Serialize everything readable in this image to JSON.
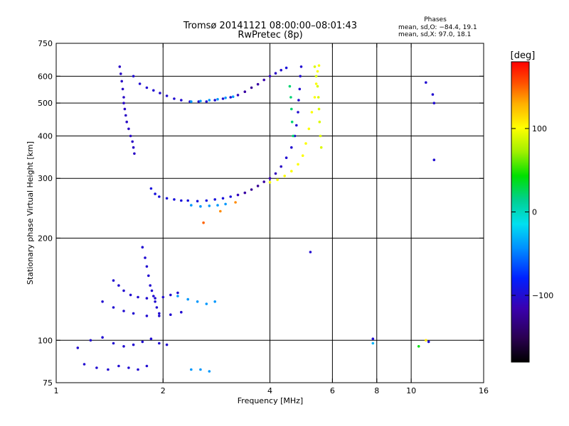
{
  "header": {
    "title_line1": "Tromsø 20141121 08:00:00–08:01:43",
    "title_line2": "RwPretec (8p)",
    "stats_title": "Phases",
    "stats_o": "mean, sd,O: −84.4, 19.1",
    "stats_x": "mean, sd,X:  97.0, 18.1"
  },
  "colorbar": {
    "label": "[deg]",
    "ticks": [
      {
        "value": 100,
        "label": "100"
      },
      {
        "value": 0,
        "label": "0"
      },
      {
        "value": -100,
        "label": "−100"
      }
    ],
    "range": [
      -180,
      180
    ]
  },
  "chart_data": {
    "type": "scatter",
    "xlabel": "Frequency [MHz]",
    "ylabel": "Stationary phase Virtual Height [km]",
    "x_scale": "log",
    "y_scale": "log",
    "xlim": [
      1,
      16
    ],
    "ylim": [
      75,
      750
    ],
    "x_ticks": [
      {
        "value": 1,
        "label": "1"
      },
      {
        "value": 2,
        "label": "2"
      },
      {
        "value": 4,
        "label": "4"
      },
      {
        "value": 6,
        "label": "6"
      },
      {
        "value": 8,
        "label": "8"
      },
      {
        "value": 10,
        "label": "10"
      },
      {
        "value": 16,
        "label": "16"
      }
    ],
    "y_ticks": [
      {
        "value": 75,
        "label": "75"
      },
      {
        "value": 100,
        "label": "100"
      },
      {
        "value": 200,
        "label": "200"
      },
      {
        "value": 300,
        "label": "300"
      },
      {
        "value": 400,
        "label": "400"
      },
      {
        "value": 500,
        "label": "500"
      },
      {
        "value": 600,
        "label": "600"
      },
      {
        "value": 750,
        "label": "750"
      }
    ],
    "grid_x": [
      2,
      4,
      6,
      8,
      10
    ],
    "grid_y": [
      100,
      200,
      300,
      400,
      500,
      600
    ],
    "series": [
      {
        "points": [
          [
            1.51,
            640,
            -105
          ],
          [
            1.52,
            610,
            -105
          ],
          [
            1.53,
            580,
            -105
          ],
          [
            1.54,
            550,
            -105
          ],
          [
            1.55,
            520,
            -105
          ],
          [
            1.55,
            500,
            -105
          ],
          [
            1.56,
            480,
            -105
          ],
          [
            1.57,
            460,
            -105
          ],
          [
            1.58,
            440,
            -105
          ],
          [
            1.6,
            420,
            -105
          ],
          [
            1.62,
            400,
            -105
          ],
          [
            1.64,
            385,
            -105
          ],
          [
            1.65,
            370,
            -105
          ],
          [
            1.66,
            355,
            -105
          ]
        ]
      },
      {
        "points": [
          [
            1.65,
            600,
            -100
          ],
          [
            1.72,
            570,
            -100
          ],
          [
            1.8,
            555,
            -100
          ],
          [
            1.88,
            545,
            -100
          ],
          [
            1.96,
            535,
            -100
          ],
          [
            2.05,
            525,
            -100
          ],
          [
            2.15,
            515,
            -100
          ],
          [
            2.25,
            510,
            -100
          ],
          [
            2.38,
            505,
            -100
          ],
          [
            2.52,
            505,
            -100
          ],
          [
            2.65,
            505,
            -100
          ],
          [
            2.8,
            510,
            -100
          ],
          [
            2.95,
            515,
            -100
          ],
          [
            3.1,
            520,
            -100
          ],
          [
            3.25,
            528,
            -110
          ],
          [
            3.4,
            540,
            -120
          ],
          [
            3.55,
            555,
            -125
          ],
          [
            3.7,
            568,
            -120
          ],
          [
            3.85,
            585,
            -115
          ],
          [
            4.0,
            600,
            -110
          ],
          [
            4.15,
            612,
            -105
          ],
          [
            4.3,
            625,
            -100
          ],
          [
            4.45,
            635,
            -95
          ]
        ]
      },
      {
        "points": [
          [
            2.4,
            505,
            -40
          ],
          [
            2.55,
            507,
            -40
          ],
          [
            2.7,
            510,
            -40
          ],
          [
            2.85,
            513,
            -40
          ],
          [
            3.0,
            518,
            -40
          ],
          [
            3.15,
            522,
            -40
          ]
        ]
      },
      {
        "points": [
          [
            1.85,
            280,
            -95
          ],
          [
            1.9,
            270,
            -95
          ],
          [
            1.95,
            265,
            -95
          ],
          [
            2.05,
            262,
            -95
          ],
          [
            2.15,
            260,
            -95
          ],
          [
            2.25,
            258,
            -95
          ],
          [
            2.35,
            258,
            -95
          ],
          [
            2.5,
            257,
            -95
          ],
          [
            2.65,
            258,
            -95
          ],
          [
            2.8,
            260,
            -95
          ],
          [
            2.95,
            262,
            -95
          ],
          [
            3.1,
            265,
            -95
          ],
          [
            3.25,
            268,
            -110
          ],
          [
            3.4,
            272,
            -120
          ],
          [
            3.55,
            278,
            -125
          ],
          [
            3.7,
            285,
            -125
          ],
          [
            3.85,
            293,
            -120
          ],
          [
            4.0,
            300,
            -115
          ],
          [
            4.15,
            310,
            -110
          ],
          [
            4.3,
            325,
            -105
          ],
          [
            4.45,
            345,
            -100
          ],
          [
            4.6,
            370,
            -100
          ],
          [
            4.7,
            400,
            -100
          ],
          [
            4.75,
            430,
            -100
          ],
          [
            4.8,
            470,
            -100
          ],
          [
            4.82,
            510,
            -100
          ],
          [
            4.85,
            550,
            -100
          ],
          [
            4.87,
            600,
            -100
          ],
          [
            4.9,
            640,
            -100
          ]
        ]
      },
      {
        "points": [
          [
            2.4,
            250,
            -40
          ],
          [
            2.55,
            248,
            -40
          ],
          [
            2.7,
            249,
            -40
          ],
          [
            2.85,
            250,
            -40
          ],
          [
            3.0,
            252,
            -40
          ]
        ]
      },
      {
        "points": [
          [
            4.0,
            292,
            100
          ],
          [
            4.2,
            297,
            100
          ],
          [
            4.4,
            305,
            100
          ],
          [
            4.6,
            315,
            100
          ],
          [
            4.8,
            330,
            100
          ],
          [
            4.95,
            350,
            100
          ],
          [
            5.05,
            380,
            100
          ],
          [
            5.15,
            420,
            100
          ],
          [
            5.25,
            470,
            100
          ],
          [
            5.35,
            520,
            100
          ],
          [
            5.4,
            570,
            100
          ],
          [
            5.45,
            620,
            100
          ],
          [
            5.5,
            645,
            100
          ]
        ]
      },
      {
        "points": [
          [
            5.35,
            640,
            90
          ],
          [
            5.4,
            600,
            90
          ],
          [
            5.45,
            560,
            90
          ],
          [
            5.48,
            520,
            90
          ],
          [
            5.5,
            480,
            90
          ],
          [
            5.52,
            440,
            90
          ],
          [
            5.55,
            400,
            90
          ],
          [
            5.58,
            370,
            90
          ]
        ]
      },
      {
        "points": [
          [
            4.55,
            560,
            20
          ],
          [
            4.58,
            520,
            20
          ],
          [
            4.6,
            480,
            20
          ],
          [
            4.62,
            440,
            20
          ],
          [
            4.65,
            400,
            20
          ]
        ]
      },
      {
        "points": [
          [
            1.75,
            188,
            -100
          ],
          [
            1.78,
            175,
            -100
          ],
          [
            1.8,
            165,
            -100
          ],
          [
            1.82,
            155,
            -100
          ],
          [
            1.84,
            145,
            -100
          ],
          [
            1.86,
            140,
            -100
          ],
          [
            1.88,
            135,
            -100
          ],
          [
            1.9,
            130,
            -100
          ],
          [
            1.92,
            125,
            -100
          ],
          [
            1.95,
            120,
            -100
          ]
        ]
      },
      {
        "points": [
          [
            1.45,
            150,
            -100
          ],
          [
            1.5,
            145,
            -100
          ],
          [
            1.55,
            140,
            -100
          ],
          [
            1.62,
            136,
            -100
          ],
          [
            1.7,
            134,
            -100
          ],
          [
            1.8,
            133,
            -100
          ],
          [
            1.9,
            133,
            -100
          ],
          [
            2.0,
            134,
            -100
          ],
          [
            2.1,
            136,
            -100
          ],
          [
            2.2,
            138,
            -100
          ]
        ]
      },
      {
        "points": [
          [
            1.35,
            130,
            -100
          ],
          [
            1.45,
            125,
            -100
          ],
          [
            1.55,
            122,
            -100
          ],
          [
            1.65,
            120,
            -100
          ],
          [
            1.8,
            118,
            -100
          ],
          [
            1.95,
            118,
            -100
          ],
          [
            2.1,
            119,
            -100
          ],
          [
            2.25,
            121,
            -100
          ]
        ]
      },
      {
        "points": [
          [
            2.2,
            135,
            -40
          ],
          [
            2.35,
            132,
            -40
          ],
          [
            2.5,
            130,
            -40
          ],
          [
            2.65,
            128,
            -40
          ],
          [
            2.8,
            130,
            -40
          ]
        ]
      },
      {
        "points": [
          [
            1.15,
            95,
            -100
          ],
          [
            1.25,
            100,
            -100
          ],
          [
            1.35,
            102,
            -100
          ],
          [
            1.45,
            98,
            -100
          ],
          [
            1.55,
            96,
            -100
          ],
          [
            1.65,
            97,
            -100
          ],
          [
            1.75,
            99,
            -100
          ],
          [
            1.85,
            101,
            -100
          ],
          [
            1.95,
            98,
            -100
          ],
          [
            2.05,
            97,
            -100
          ]
        ]
      },
      {
        "points": [
          [
            1.2,
            85,
            -100
          ],
          [
            1.3,
            83,
            -100
          ],
          [
            1.4,
            82,
            -100
          ],
          [
            1.5,
            84,
            -100
          ],
          [
            1.6,
            83,
            -100
          ],
          [
            1.7,
            82,
            -100
          ],
          [
            1.8,
            84,
            -100
          ]
        ]
      },
      {
        "points": [
          [
            2.4,
            82,
            -40
          ],
          [
            2.55,
            82,
            -40
          ],
          [
            2.7,
            81,
            -40
          ]
        ]
      },
      {
        "points": [
          [
            11.0,
            575,
            -100
          ],
          [
            11.5,
            530,
            -100
          ],
          [
            11.6,
            500,
            -100
          ],
          [
            11.6,
            340,
            -100
          ],
          [
            5.2,
            182,
            -100
          ],
          [
            7.8,
            101,
            -100
          ],
          [
            11.2,
            99,
            -100
          ],
          [
            7.8,
            98,
            -30
          ],
          [
            10.5,
            96,
            40
          ],
          [
            11.0,
            100,
            110
          ],
          [
            3.2,
            255,
            140
          ],
          [
            2.9,
            240,
            140
          ],
          [
            2.6,
            222,
            150
          ]
        ]
      }
    ]
  }
}
